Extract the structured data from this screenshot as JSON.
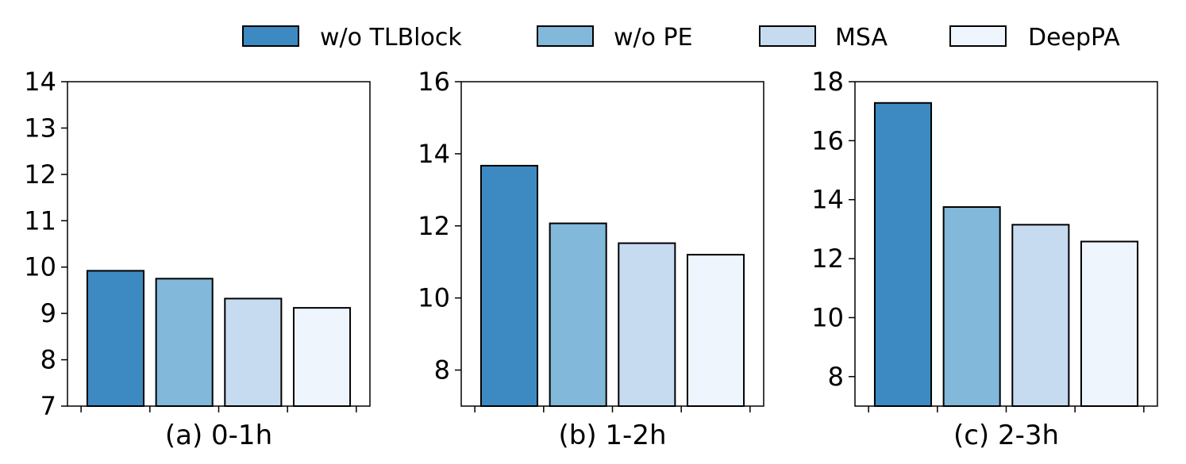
{
  "legend": {
    "position": "top",
    "entries": [
      {
        "name": "w/o TLBlock",
        "color": "#3d8ac2"
      },
      {
        "name": "w/o PE",
        "color": "#82b8da"
      },
      {
        "name": "MSA",
        "color": "#c6dbef"
      },
      {
        "name": "DeepPA",
        "color": "#eef5fc"
      }
    ]
  },
  "chart_data": [
    {
      "type": "bar",
      "xlabel": "(a) 0-1h",
      "categories": [
        "w/o TLBlock",
        "w/o PE",
        "MSA",
        "DeepPA"
      ],
      "values": [
        9.92,
        9.75,
        9.32,
        9.12
      ],
      "ylim": [
        7,
        14
      ],
      "yticks": [
        7,
        8,
        9,
        10,
        11,
        12,
        13,
        14
      ],
      "grid": false
    },
    {
      "type": "bar",
      "xlabel": "(b) 1-2h",
      "categories": [
        "w/o TLBlock",
        "w/o PE",
        "MSA",
        "DeepPA"
      ],
      "values": [
        13.67,
        12.07,
        11.52,
        11.2
      ],
      "ylim": [
        7,
        16
      ],
      "yticks": [
        8,
        10,
        12,
        14,
        16
      ],
      "grid": false
    },
    {
      "type": "bar",
      "xlabel": "(c) 2-3h",
      "categories": [
        "w/o TLBlock",
        "w/o PE",
        "MSA",
        "DeepPA"
      ],
      "values": [
        17.28,
        13.75,
        13.15,
        12.58
      ],
      "ylim": [
        7,
        18
      ],
      "yticks": [
        8,
        10,
        12,
        14,
        16,
        18
      ],
      "grid": false
    }
  ]
}
